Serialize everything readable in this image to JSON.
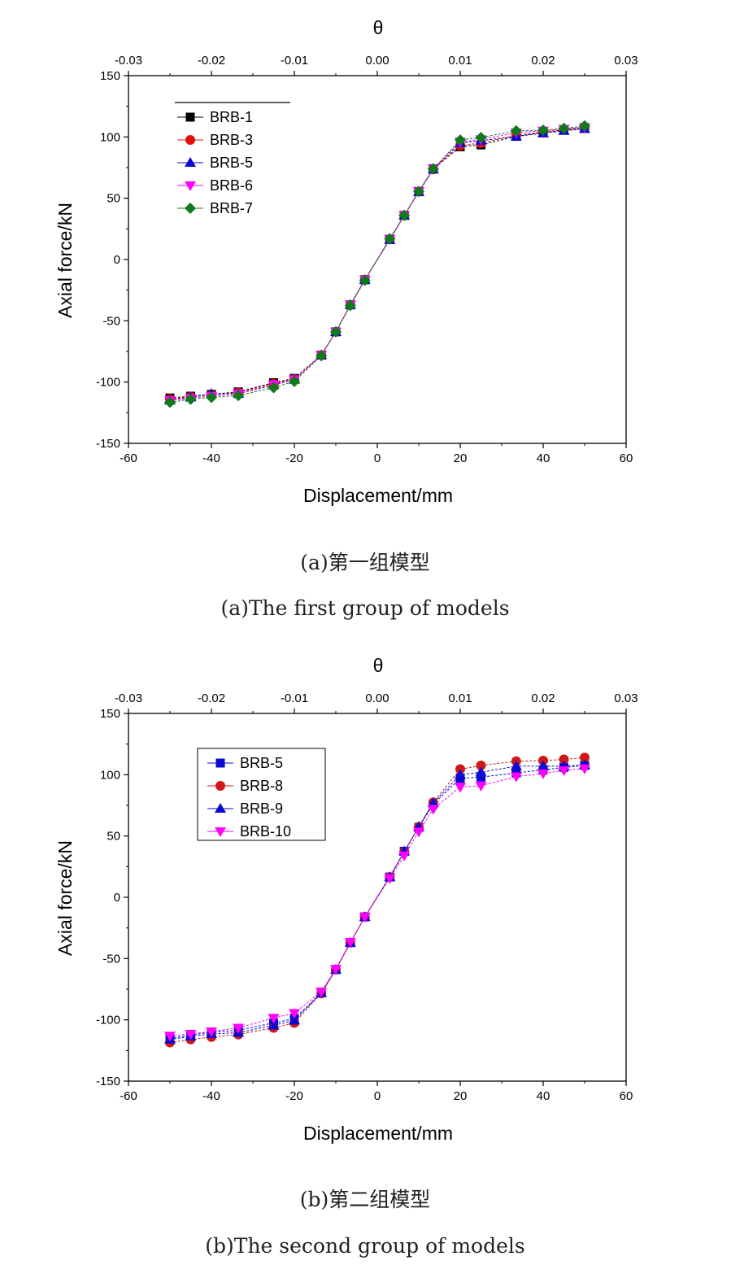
{
  "colors": {
    "BRB-1": "#000000",
    "BRB-3": "#e01010",
    "BRB-5": "#0a0ad0",
    "BRB-6": "#ff00ff",
    "BRB-7": "#0f7a1a",
    "BRB-8": "#d01818",
    "BRB-9": "#0a0ad0",
    "BRB-10": "#ff00ff"
  },
  "panels": [
    {
      "caption_cn": "(a)第一组模型",
      "caption_en": "(a)The first group of models",
      "chart_data": {
        "type": "line",
        "title": "",
        "xlabel": "Displacement/mm",
        "ylabel": "Axial force/kN",
        "x2label": "θ",
        "xlim": [
          -60,
          60
        ],
        "ylim": [
          -150,
          150
        ],
        "x2lim": [
          -0.03,
          0.03
        ],
        "xticks": [
          "-60",
          "-40",
          "-20",
          "0",
          "20",
          "40",
          "60"
        ],
        "yticks": [
          "150",
          "100",
          "50",
          "0",
          "-50",
          "-100",
          "-150"
        ],
        "x2ticks": [
          "-0.03",
          "-0.02",
          "-0.01",
          "0.00",
          "0.01",
          "0.02",
          "0.03"
        ],
        "grid": false,
        "legend_position": "top-left",
        "x": [
          -50,
          -45,
          -40,
          -33.5,
          -25,
          -20,
          -13.5,
          -10,
          -6.5,
          -3,
          3,
          6.5,
          10,
          13.5,
          20,
          25,
          33.5,
          40,
          45,
          50
        ],
        "series": [
          {
            "name": "BRB-1",
            "marker": "square",
            "values": [
              -113,
              -111.5,
              -110,
              -108,
              -100.5,
              -97,
              -78,
              -59,
              -37,
              -16.5,
              16.5,
              36,
              55.5,
              74,
              92,
              93.5,
              100.5,
              103.5,
              105.5,
              107
            ]
          },
          {
            "name": "BRB-3",
            "marker": "circle",
            "values": [
              -114,
              -112,
              -110.5,
              -108.5,
              -101.5,
              -97.5,
              -78,
              -59,
              -37,
              -16.5,
              16.5,
              36,
              55.5,
              73.5,
              93,
              95,
              101.5,
              104,
              106,
              108
            ]
          },
          {
            "name": "BRB-5",
            "marker": "triangle-up",
            "values": [
              -115,
              -112.5,
              -109.5,
              -109.5,
              -102.5,
              -98,
              -78,
              -59,
              -37,
              -16.5,
              16,
              36,
              55,
              73.5,
              95,
              97,
              100.5,
              103,
              105,
              106.5
            ]
          },
          {
            "name": "BRB-6",
            "marker": "triangle-down",
            "values": [
              -115,
              -113,
              -111.5,
              -109.5,
              -102,
              -98,
              -78,
              -59,
              -37,
              -16.5,
              16.5,
              36,
              55.5,
              74,
              96,
              98,
              103.5,
              105,
              106.5,
              108
            ]
          },
          {
            "name": "BRB-7",
            "marker": "diamond",
            "values": [
              -116.5,
              -114,
              -112.5,
              -111,
              -104.5,
              -99.5,
              -78.5,
              -59,
              -37.5,
              -17,
              17,
              36,
              55.5,
              74,
              97.5,
              99.5,
              105,
              105.5,
              107,
              109
            ]
          }
        ]
      }
    },
    {
      "caption_cn": "(b)第二组模型",
      "caption_en": "(b)The second group of models",
      "chart_data": {
        "type": "line",
        "title": "",
        "xlabel": "Displacement/mm",
        "ylabel": "Axial force/kN",
        "x2label": "θ",
        "xlim": [
          -60,
          60
        ],
        "ylim": [
          -150,
          150
        ],
        "x2lim": [
          -0.03,
          0.03
        ],
        "xticks": [
          "-60",
          "-40",
          "-20",
          "0",
          "20",
          "40",
          "60"
        ],
        "yticks": [
          "150",
          "100",
          "50",
          "0",
          "-50",
          "-100",
          "-150"
        ],
        "x2ticks": [
          "-0.03",
          "-0.02",
          "-0.01",
          "0.00",
          "0.01",
          "0.02",
          "0.03"
        ],
        "grid": false,
        "legend_position": "top-left",
        "x": [
          -50,
          -45,
          -40,
          -33.5,
          -25,
          -20,
          -13.5,
          -10,
          -6.5,
          -3,
          3,
          6.5,
          10,
          13.5,
          20,
          25,
          33.5,
          40,
          45,
          50
        ],
        "series": [
          {
            "name": "BRB-5",
            "marker": "square",
            "values": [
              -115,
              -112.5,
              -110,
              -108.5,
              -102.5,
              -99,
              -78,
              -59,
              -37,
              -16,
              16.5,
              37.5,
              57,
              76,
              97,
              98,
              101.5,
              104,
              106,
              107.5
            ]
          },
          {
            "name": "BRB-8",
            "marker": "circle",
            "values": [
              -118.5,
              -116,
              -114,
              -112,
              -106.5,
              -102.5,
              -78.5,
              -59,
              -37,
              -16,
              16.5,
              37,
              57.5,
              77.5,
              104.5,
              107.5,
              111,
              111.5,
              112.5,
              114
            ]
          },
          {
            "name": "BRB-9",
            "marker": "triangle-up",
            "values": [
              -116,
              -113.5,
              -111.5,
              -110.5,
              -104.5,
              -100.5,
              -78,
              -59,
              -37,
              -16,
              16.5,
              37.5,
              57.5,
              77,
              100,
              102,
              107,
              107,
              107,
              108
            ]
          },
          {
            "name": "BRB-10",
            "marker": "triangle-down",
            "values": [
              -113,
              -111.5,
              -109.5,
              -106.5,
              -98.5,
              -94.5,
              -77,
              -58.5,
              -36.5,
              -16,
              15.5,
              34,
              53.5,
              72,
              90,
              91,
              98.5,
              101,
              103.5,
              105
            ]
          }
        ]
      }
    }
  ]
}
